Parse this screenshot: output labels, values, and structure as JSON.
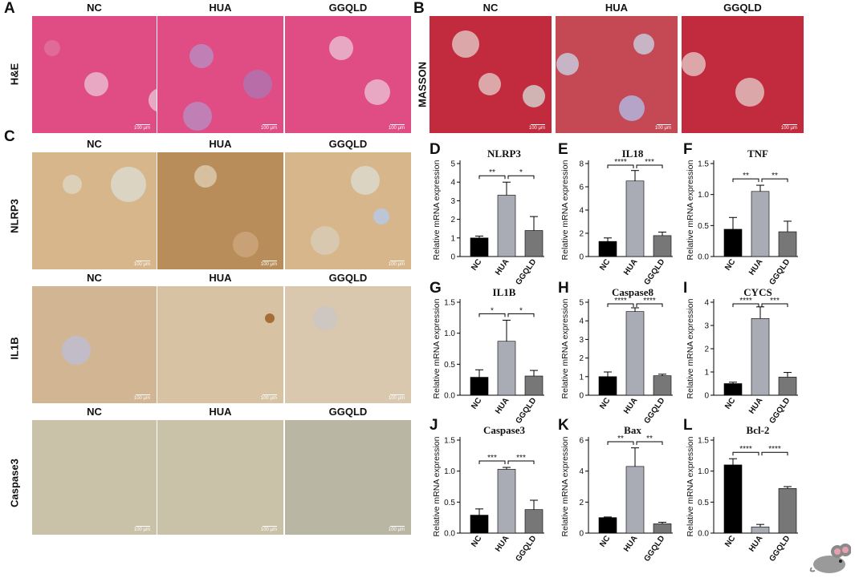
{
  "panels": {
    "A": {
      "letter": "A",
      "row_label": "H&E",
      "columns": [
        "NC",
        "HUA",
        "GGQLD"
      ]
    },
    "B": {
      "letter": "B",
      "row_label": "MASSON",
      "columns": [
        "NC",
        "HUA",
        "GGQLD"
      ]
    },
    "C": {
      "letter": "C",
      "rows": [
        {
          "label": "NLRP3",
          "columns": [
            "NC",
            "HUA",
            "GGQLD"
          ]
        },
        {
          "label": "IL1B",
          "columns": [
            "NC",
            "HUA",
            "GGQLD"
          ]
        },
        {
          "label": "Caspase3",
          "columns": [
            "NC",
            "HUA",
            "GGQLD"
          ]
        }
      ]
    }
  },
  "scale_bar": "100 μm",
  "colors": {
    "NC": "#000000",
    "HUA": "#a9abb5",
    "GGQLD": "#777777",
    "he": "#df4d84",
    "masson": "#c22a3d",
    "ihc": "#d6b68a",
    "caspase3": "#c9c2a8"
  },
  "icon": "mouse-icon",
  "chart_data": [
    {
      "panel": "D",
      "type": "bar",
      "title": "NLRP3",
      "ylabel": "Relative mRNA expression",
      "categories": [
        "NC",
        "HUA",
        "GGQLD"
      ],
      "values": [
        1.0,
        3.3,
        1.4
      ],
      "errors": [
        0.1,
        0.7,
        0.75
      ],
      "ylim": [
        0,
        5
      ],
      "yticks": [
        "0",
        "1",
        "2",
        "3",
        "4",
        "5"
      ],
      "significance": [
        {
          "from": 0,
          "to": 1,
          "label": "**"
        },
        {
          "from": 1,
          "to": 2,
          "label": "*"
        }
      ]
    },
    {
      "panel": "E",
      "type": "bar",
      "title": "IL18",
      "ylabel": "Relative mRNA expression",
      "categories": [
        "NC",
        "HUA",
        "GGQLD"
      ],
      "values": [
        1.3,
        6.5,
        1.8
      ],
      "errors": [
        0.3,
        0.9,
        0.3
      ],
      "ylim": [
        0,
        8
      ],
      "yticks": [
        "0",
        "2",
        "4",
        "6",
        "8"
      ],
      "significance": [
        {
          "from": 0,
          "to": 1,
          "label": "****"
        },
        {
          "from": 1,
          "to": 2,
          "label": "***"
        }
      ]
    },
    {
      "panel": "F",
      "type": "bar",
      "title": "TNF",
      "ylabel": "Relative mRNA expression",
      "categories": [
        "NC",
        "HUA",
        "GGQLD"
      ],
      "values": [
        0.44,
        1.05,
        0.4
      ],
      "errors": [
        0.19,
        0.1,
        0.17
      ],
      "ylim": [
        0,
        1.5
      ],
      "yticks": [
        "0.0",
        "0.5",
        "1.0",
        "1.5"
      ],
      "significance": [
        {
          "from": 0,
          "to": 1,
          "label": "**"
        },
        {
          "from": 1,
          "to": 2,
          "label": "**"
        }
      ]
    },
    {
      "panel": "G",
      "type": "bar",
      "title": "IL1B",
      "ylabel": "Relative mRNA expression",
      "categories": [
        "NC",
        "HUA",
        "GGQLD"
      ],
      "values": [
        0.29,
        0.87,
        0.31
      ],
      "errors": [
        0.12,
        0.34,
        0.09
      ],
      "ylim": [
        0,
        1.5
      ],
      "yticks": [
        "0.0",
        "0.5",
        "1.0",
        "1.5"
      ],
      "significance": [
        {
          "from": 0,
          "to": 1,
          "label": "*"
        },
        {
          "from": 1,
          "to": 2,
          "label": "*"
        }
      ]
    },
    {
      "panel": "H",
      "type": "bar",
      "title": "Caspase8",
      "ylabel": "Relative mRNA expression",
      "categories": [
        "NC",
        "HUA",
        "GGQLD"
      ],
      "values": [
        1.0,
        4.5,
        1.05
      ],
      "errors": [
        0.25,
        0.2,
        0.08
      ],
      "ylim": [
        0,
        5
      ],
      "yticks": [
        "0",
        "1",
        "2",
        "3",
        "4",
        "5"
      ],
      "significance": [
        {
          "from": 0,
          "to": 1,
          "label": "****"
        },
        {
          "from": 1,
          "to": 2,
          "label": "****"
        }
      ]
    },
    {
      "panel": "I",
      "type": "bar",
      "title": "CYCS",
      "ylabel": "Relative mRNA expression",
      "categories": [
        "NC",
        "HUA",
        "GGQLD"
      ],
      "values": [
        0.5,
        3.3,
        0.78
      ],
      "errors": [
        0.06,
        0.5,
        0.2
      ],
      "ylim": [
        0,
        4
      ],
      "yticks": [
        "0",
        "1",
        "2",
        "3",
        "4"
      ],
      "significance": [
        {
          "from": 0,
          "to": 1,
          "label": "****"
        },
        {
          "from": 1,
          "to": 2,
          "label": "***"
        }
      ]
    },
    {
      "panel": "J",
      "type": "bar",
      "title": "Caspase3",
      "ylabel": "Relative mRNA expression",
      "categories": [
        "NC",
        "HUA",
        "GGQLD"
      ],
      "values": [
        0.29,
        1.03,
        0.38
      ],
      "errors": [
        0.1,
        0.03,
        0.15
      ],
      "ylim": [
        0,
        1.5
      ],
      "yticks": [
        "0.0",
        "0.5",
        "1.0",
        "1.5"
      ],
      "significance": [
        {
          "from": 0,
          "to": 1,
          "label": "***"
        },
        {
          "from": 1,
          "to": 2,
          "label": "***"
        }
      ]
    },
    {
      "panel": "K",
      "type": "bar",
      "title": "Bax",
      "ylabel": "Relative mRNA expression",
      "categories": [
        "NC",
        "HUA",
        "GGQLD"
      ],
      "values": [
        1.0,
        4.3,
        0.6
      ],
      "errors": [
        0.04,
        1.2,
        0.1
      ],
      "ylim": [
        0,
        6
      ],
      "yticks": [
        "0",
        "2",
        "4",
        "6"
      ],
      "significance": [
        {
          "from": 0,
          "to": 1,
          "label": "**"
        },
        {
          "from": 1,
          "to": 2,
          "label": "**"
        }
      ]
    },
    {
      "panel": "L",
      "type": "bar",
      "title": "Bcl-2",
      "ylabel": "Relative mRNA expression",
      "categories": [
        "NC",
        "HUA",
        "GGQLD"
      ],
      "values": [
        1.1,
        0.1,
        0.72
      ],
      "errors": [
        0.1,
        0.04,
        0.03
      ],
      "ylim": [
        0,
        1.5
      ],
      "yticks": [
        "0.0",
        "0.5",
        "1.0",
        "1.5"
      ],
      "significance": [
        {
          "from": 0,
          "to": 1,
          "label": "****"
        },
        {
          "from": 1,
          "to": 2,
          "label": "****"
        }
      ]
    }
  ]
}
